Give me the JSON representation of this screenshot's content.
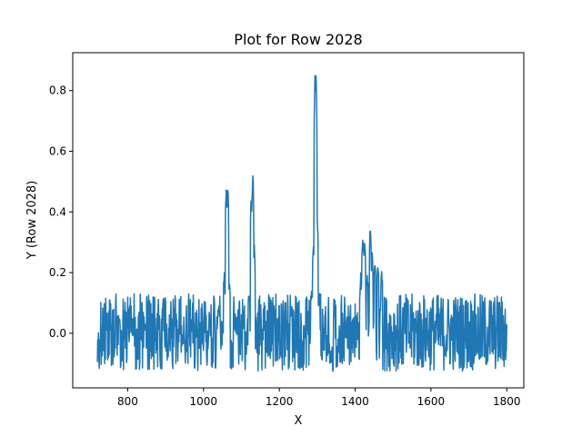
{
  "chart_data": {
    "type": "line",
    "title": "Plot for Row 2028",
    "xlabel": "X",
    "ylabel": "Y (Row 2028)",
    "xlim": [
      655,
      1845
    ],
    "ylim": [
      -0.18,
      0.925
    ],
    "xticks": [
      800,
      1000,
      1200,
      1400,
      1600,
      1800
    ],
    "xtick_labels": [
      "800",
      "1000",
      "1200",
      "1400",
      "1600",
      "1800"
    ],
    "yticks": [
      0.0,
      0.2,
      0.4,
      0.6,
      0.8
    ],
    "ytick_labels": [
      "0.0",
      "0.2",
      "0.4",
      "0.6",
      "0.8"
    ],
    "grid": false,
    "series": [
      {
        "color": "#1f77b4",
        "x_range": [
          720,
          1800
        ],
        "noise_band": [
          -0.125,
          0.13
        ],
        "peaks": [
          {
            "x": 1040,
            "y": 0.1
          },
          {
            "x": 1055,
            "y": 0.2
          },
          {
            "x": 1060,
            "y": 0.51
          },
          {
            "x": 1064,
            "y": 0.5
          },
          {
            "x": 1068,
            "y": 0.2
          },
          {
            "x": 1120,
            "y": 0.15
          },
          {
            "x": 1126,
            "y": 0.47
          },
          {
            "x": 1130,
            "y": 0.55
          },
          {
            "x": 1134,
            "y": 0.3
          },
          {
            "x": 1285,
            "y": 0.15
          },
          {
            "x": 1290,
            "y": 0.3
          },
          {
            "x": 1294,
            "y": 0.88
          },
          {
            "x": 1297,
            "y": 0.87
          },
          {
            "x": 1300,
            "y": 0.4
          },
          {
            "x": 1305,
            "y": 0.15
          },
          {
            "x": 1415,
            "y": 0.2
          },
          {
            "x": 1420,
            "y": 0.345
          },
          {
            "x": 1425,
            "y": 0.33
          },
          {
            "x": 1432,
            "y": 0.2
          },
          {
            "x": 1440,
            "y": 0.37
          },
          {
            "x": 1445,
            "y": 0.27
          },
          {
            "x": 1452,
            "y": 0.26
          },
          {
            "x": 1460,
            "y": 0.24
          },
          {
            "x": 1470,
            "y": 0.21
          }
        ]
      }
    ]
  }
}
